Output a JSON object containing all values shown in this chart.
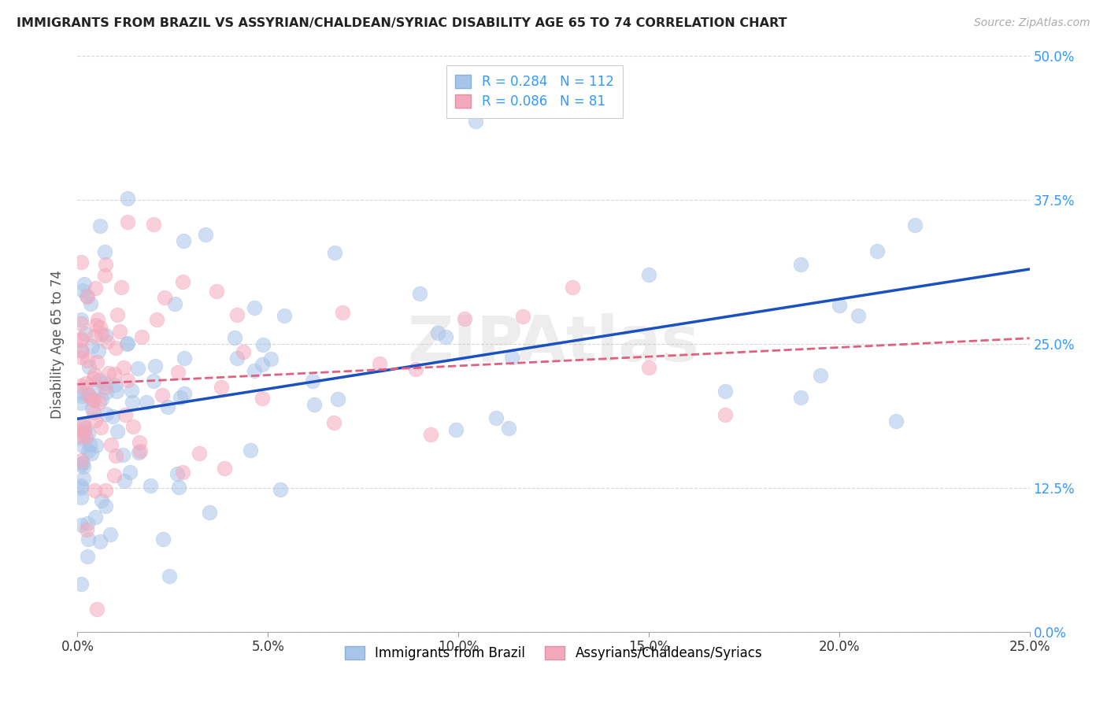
{
  "title": "IMMIGRANTS FROM BRAZIL VS ASSYRIAN/CHALDEAN/SYRIAC DISABILITY AGE 65 TO 74 CORRELATION CHART",
  "source": "Source: ZipAtlas.com",
  "ylabel": "Disability Age 65 to 74",
  "xlim": [
    0.0,
    0.25
  ],
  "ylim": [
    0.0,
    0.5
  ],
  "R_brazil": 0.284,
  "N_brazil": 112,
  "R_assyrian": 0.086,
  "N_assyrian": 81,
  "color_brazil": "#a8c4e8",
  "color_assyrian": "#f4a8bc",
  "trendline_brazil": "#1a50c0",
  "trendline_assyrian": "#e06080",
  "background_color": "#ffffff",
  "grid_color": "#cccccc",
  "legend_label_brazil": "Immigrants from Brazil",
  "legend_label_assyrian": "Assyrians/Chaldeans/Syriacs",
  "brazil_intercept": 0.185,
  "brazil_slope": 0.52,
  "assyrian_intercept": 0.215,
  "assyrian_slope": 0.16
}
